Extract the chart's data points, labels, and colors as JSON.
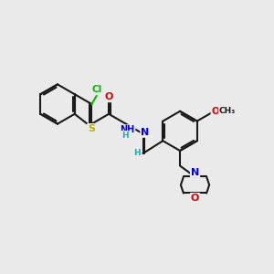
{
  "bg_color": "#eaeaea",
  "bond_color": "#1a1a1a",
  "S_color": "#b8b000",
  "Cl_color": "#00bb00",
  "N_color": "#0000ee",
  "O_color": "#dd0000",
  "H_color": "#22aaaa",
  "lw": 1.5,
  "xlim": [
    0,
    10
  ],
  "ylim": [
    0,
    10
  ]
}
